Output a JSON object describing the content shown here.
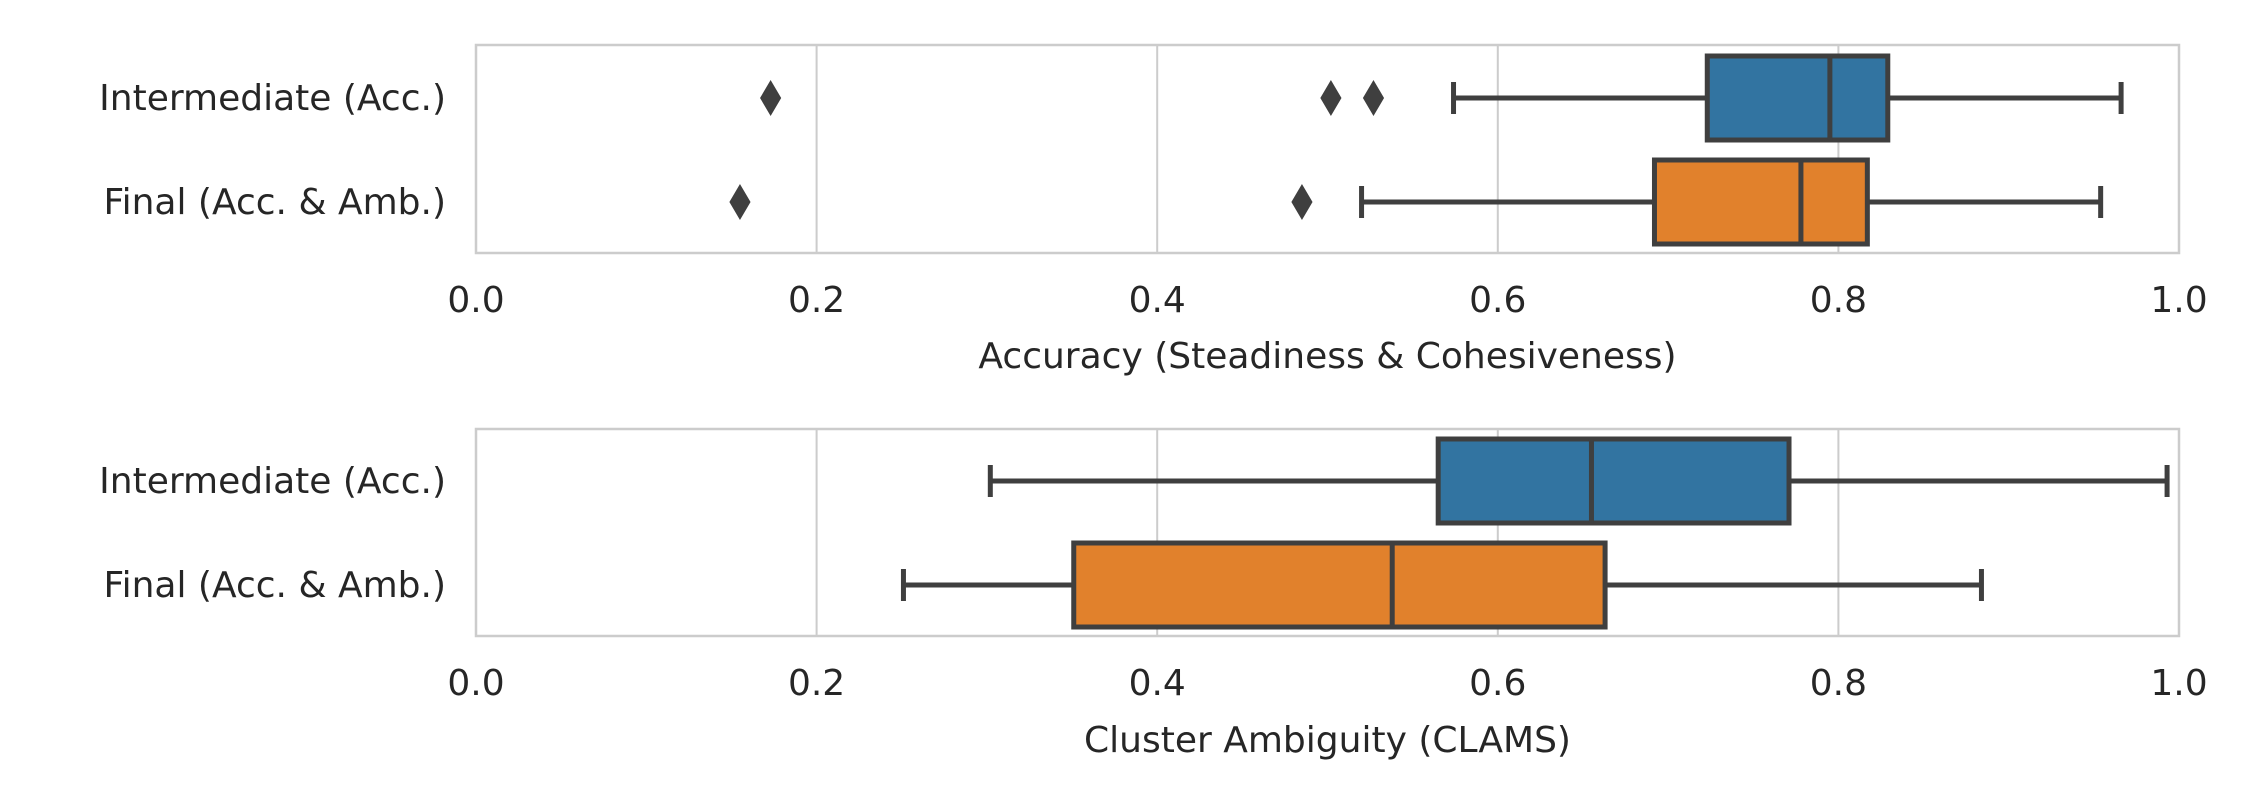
{
  "chart_data": [
    {
      "type": "boxplot",
      "orientation": "horizontal",
      "xlabel": "Accuracy (Steadiness & Cohesiveness)",
      "xlim": [
        0.0,
        1.0
      ],
      "xticks": [
        0.0,
        0.2,
        0.4,
        0.6,
        0.8,
        1.0
      ],
      "xtick_labels": [
        "0.0",
        "0.2",
        "0.4",
        "0.6",
        "0.8",
        "1.0"
      ],
      "grid": true,
      "categories": [
        "Intermediate (Acc.)",
        "Final (Acc. & Amb.)"
      ],
      "series": [
        {
          "name": "Intermediate (Acc.)",
          "color": "#3274a1",
          "whisker_low": 0.574,
          "q1": 0.723,
          "median": 0.795,
          "q3": 0.829,
          "whisker_high": 0.966,
          "outliers": [
            0.173,
            0.502,
            0.527
          ]
        },
        {
          "name": "Final (Acc. & Amb.)",
          "color": "#e1812c",
          "whisker_low": 0.52,
          "q1": 0.692,
          "median": 0.778,
          "q3": 0.817,
          "whisker_high": 0.954,
          "outliers": [
            0.155,
            0.485
          ]
        }
      ]
    },
    {
      "type": "boxplot",
      "orientation": "horizontal",
      "xlabel": "Cluster Ambiguity (CLAMS)",
      "xlim": [
        0.0,
        1.0
      ],
      "xticks": [
        0.0,
        0.2,
        0.4,
        0.6,
        0.8,
        1.0
      ],
      "xtick_labels": [
        "0.0",
        "0.2",
        "0.4",
        "0.6",
        "0.8",
        "1.0"
      ],
      "grid": true,
      "categories": [
        "Intermediate (Acc.)",
        "Final (Acc. & Amb.)"
      ],
      "series": [
        {
          "name": "Intermediate (Acc.)",
          "color": "#3274a1",
          "whisker_low": 0.302,
          "q1": 0.565,
          "median": 0.655,
          "q3": 0.771,
          "whisker_high": 0.993,
          "outliers": []
        },
        {
          "name": "Final (Acc. & Amb.)",
          "color": "#e1812c",
          "whisker_low": 0.251,
          "q1": 0.351,
          "median": 0.538,
          "q3": 0.663,
          "whisker_high": 0.884,
          "outliers": []
        }
      ]
    }
  ]
}
